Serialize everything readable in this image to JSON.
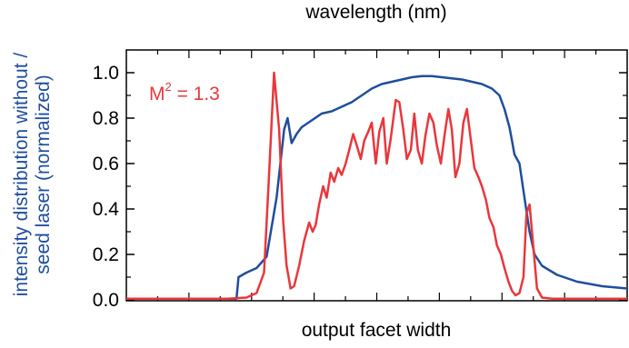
{
  "chart_data": {
    "type": "line",
    "top_axis_label": "wavelength (nm)",
    "xlabel": "output facet width",
    "ylabel_line1": "intensity distribution without /",
    "ylabel_line2": "seed laser (normalized)",
    "annotation_base": "M",
    "annotation_sup": "2",
    "annotation_rest": " = 1.3",
    "ylim": [
      0,
      1.05
    ],
    "xlim": [
      0,
      100
    ],
    "yticks": [
      "0.0",
      "0.2",
      "0.4",
      "0.6",
      "0.8",
      "1.0"
    ],
    "ytick_values": [
      0,
      0.2,
      0.4,
      0.6,
      0.8,
      1.0
    ],
    "series": [
      {
        "color": "#1f4e9c",
        "points": [
          [
            0,
            0.005
          ],
          [
            15,
            0.005
          ],
          [
            22,
            0.005
          ],
          [
            22.4,
            0.1
          ],
          [
            24,
            0.12
          ],
          [
            26,
            0.14
          ],
          [
            28,
            0.19
          ],
          [
            30,
            0.45
          ],
          [
            31.5,
            0.75
          ],
          [
            32.2,
            0.8
          ],
          [
            33,
            0.69
          ],
          [
            34,
            0.73
          ],
          [
            35,
            0.76
          ],
          [
            37,
            0.79
          ],
          [
            39,
            0.82
          ],
          [
            41,
            0.83
          ],
          [
            43,
            0.85
          ],
          [
            45,
            0.87
          ],
          [
            47,
            0.9
          ],
          [
            49,
            0.93
          ],
          [
            51,
            0.95
          ],
          [
            53,
            0.96
          ],
          [
            55,
            0.97
          ],
          [
            57,
            0.98
          ],
          [
            59,
            0.985
          ],
          [
            61,
            0.985
          ],
          [
            63,
            0.98
          ],
          [
            65,
            0.975
          ],
          [
            67,
            0.97
          ],
          [
            69,
            0.96
          ],
          [
            71,
            0.95
          ],
          [
            73,
            0.93
          ],
          [
            74.5,
            0.9
          ],
          [
            75.5,
            0.84
          ],
          [
            76.5,
            0.76
          ],
          [
            77,
            0.7
          ],
          [
            77.5,
            0.64
          ],
          [
            78.5,
            0.6
          ],
          [
            79.5,
            0.45
          ],
          [
            80.5,
            0.3
          ],
          [
            81.5,
            0.2
          ],
          [
            83,
            0.15
          ],
          [
            86,
            0.11
          ],
          [
            90,
            0.08
          ],
          [
            95,
            0.06
          ],
          [
            100,
            0.05
          ]
        ]
      },
      {
        "color": "#e8373c",
        "points": [
          [
            0,
            0.005
          ],
          [
            20,
            0.005
          ],
          [
            24,
            0.01
          ],
          [
            26,
            0.03
          ],
          [
            27.5,
            0.12
          ],
          [
            28.5,
            0.55
          ],
          [
            29.5,
            1.0
          ],
          [
            30.5,
            0.75
          ],
          [
            31.3,
            0.35
          ],
          [
            32,
            0.15
          ],
          [
            32.8,
            0.05
          ],
          [
            33.5,
            0.06
          ],
          [
            34.5,
            0.15
          ],
          [
            35.5,
            0.26
          ],
          [
            36.5,
            0.34
          ],
          [
            37.2,
            0.3
          ],
          [
            37.8,
            0.33
          ],
          [
            38.5,
            0.42
          ],
          [
            39.3,
            0.5
          ],
          [
            40,
            0.45
          ],
          [
            40.8,
            0.56
          ],
          [
            41.5,
            0.52
          ],
          [
            42.3,
            0.58
          ],
          [
            43,
            0.55
          ],
          [
            43.8,
            0.6
          ],
          [
            44.5,
            0.66
          ],
          [
            45.3,
            0.73
          ],
          [
            46,
            0.68
          ],
          [
            46.8,
            0.62
          ],
          [
            47.5,
            0.7
          ],
          [
            48.3,
            0.74
          ],
          [
            49,
            0.78
          ],
          [
            49.8,
            0.6
          ],
          [
            50.5,
            0.74
          ],
          [
            51.3,
            0.8
          ],
          [
            52,
            0.6
          ],
          [
            52.8,
            0.71
          ],
          [
            53.8,
            0.88
          ],
          [
            54.5,
            0.87
          ],
          [
            55.3,
            0.75
          ],
          [
            56,
            0.62
          ],
          [
            56.8,
            0.66
          ],
          [
            57.5,
            0.82
          ],
          [
            58.2,
            0.66
          ],
          [
            59,
            0.6
          ],
          [
            59.7,
            0.72
          ],
          [
            60.5,
            0.82
          ],
          [
            61.3,
            0.78
          ],
          [
            62,
            0.68
          ],
          [
            62.8,
            0.6
          ],
          [
            63.5,
            0.72
          ],
          [
            64.3,
            0.84
          ],
          [
            65,
            0.75
          ],
          [
            65.7,
            0.54
          ],
          [
            66.5,
            0.6
          ],
          [
            67.3,
            0.78
          ],
          [
            68,
            0.84
          ],
          [
            68.8,
            0.7
          ],
          [
            69.5,
            0.58
          ],
          [
            70.3,
            0.54
          ],
          [
            71,
            0.5
          ],
          [
            71.8,
            0.44
          ],
          [
            72.5,
            0.36
          ],
          [
            73.3,
            0.32
          ],
          [
            74,
            0.24
          ],
          [
            74.8,
            0.2
          ],
          [
            75.5,
            0.14
          ],
          [
            76.3,
            0.08
          ],
          [
            77,
            0.04
          ],
          [
            77.7,
            0.02
          ],
          [
            78.5,
            0.03
          ],
          [
            79.3,
            0.1
          ],
          [
            79.9,
            0.38
          ],
          [
            80.5,
            0.42
          ],
          [
            81.2,
            0.25
          ],
          [
            82,
            0.05
          ],
          [
            83,
            0.01
          ],
          [
            85,
            0.005
          ],
          [
            100,
            0.005
          ]
        ]
      }
    ]
  }
}
